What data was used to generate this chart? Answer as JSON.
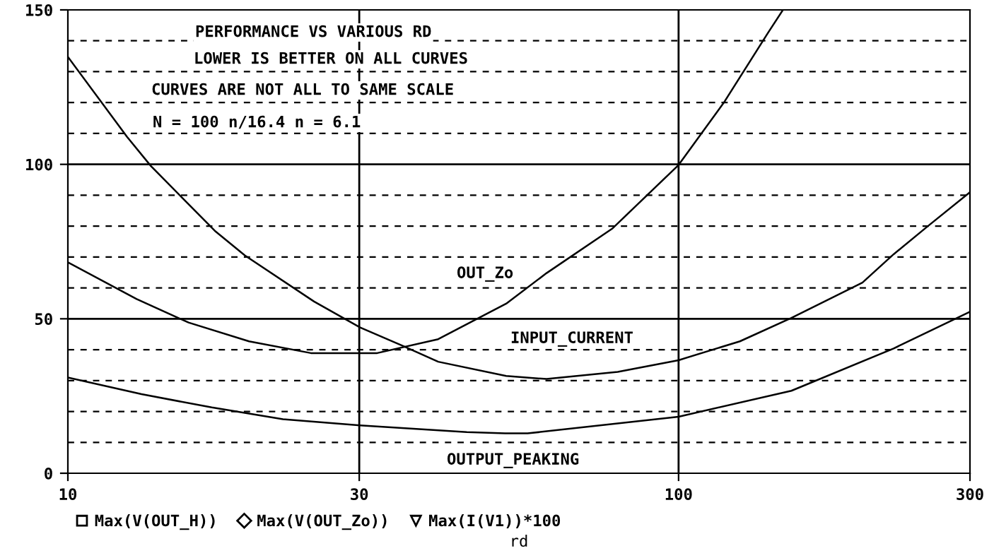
{
  "chart_data": {
    "type": "line",
    "xlabel": "rd",
    "log": "x",
    "xlim": [
      10,
      300
    ],
    "xticks": [
      10,
      30,
      100,
      300
    ],
    "ylim": [
      0,
      150
    ],
    "yticks": [
      0,
      {
        "value": 10,
        "label": null
      },
      {
        "value": 20,
        "label": null
      },
      {
        "value": 30,
        "label": null
      },
      {
        "value": 40,
        "label": null
      },
      50,
      {
        "value": 60,
        "label": null
      },
      {
        "value": 70,
        "label": null
      },
      {
        "value": 80,
        "label": null
      },
      {
        "value": 90,
        "label": null
      },
      100,
      {
        "value": 110,
        "label": null
      },
      {
        "value": 120,
        "label": null
      },
      {
        "value": 130,
        "label": null
      },
      {
        "value": 140,
        "label": null
      },
      150
    ],
    "grid": true,
    "legend": "bottom",
    "series": [
      {
        "name": "Max(V(OUT_H))",
        "color": "#000000",
        "x": [
          10,
          13.2,
          17.2,
          22.5,
          30.1,
          45,
          52,
          56.6,
          100,
          153,
          225,
          300
        ],
        "values": [
          31.0,
          25.6,
          21.3,
          17.5,
          15.5,
          13.3,
          12.9,
          12.9,
          18.3,
          26.7,
          40.4,
          52.3
        ]
      },
      {
        "name": "Max(V(OUT_Zo))",
        "color": "#000000",
        "x": [
          10,
          12.96,
          15.76,
          19.8,
          25,
          32.1,
          40.4,
          52.2,
          60.8,
          78,
          100,
          119,
          140,
          148
        ],
        "values": [
          68.3,
          56.4,
          48.8,
          42.7,
          38.9,
          38.9,
          43.4,
          54.9,
          64.8,
          79.3,
          99.8,
          120.4,
          142.5,
          149.8
        ]
      },
      {
        "name": "Max(I(V1))*100",
        "color": "#000000",
        "x": [
          10,
          12.5,
          13.67,
          17.4,
          19.5,
          25.3,
          30.1,
          35.4,
          40.4,
          52.2,
          60.8,
          79.5,
          100,
          126,
          153,
          200,
          225,
          256,
          300
        ],
        "values": [
          134.8,
          108.9,
          99.5,
          78.5,
          70.5,
          55.6,
          47.2,
          41.2,
          36.1,
          31.5,
          30.5,
          32.8,
          36.6,
          42.7,
          50.3,
          61.7,
          70.9,
          80.0,
          91.0
        ]
      }
    ],
    "annotations": [
      "PERFORMANCE VS VARIOUS RD",
      "LOWER IS BETTER ON ALL CURVES",
      "CURVES ARE NOT ALL TO SAME SCALE",
      "N = 100 n/16.4 n = 6.1",
      "OUT_Zo",
      "INPUT_CURRENT",
      "OUTPUT_PEAKING"
    ]
  }
}
